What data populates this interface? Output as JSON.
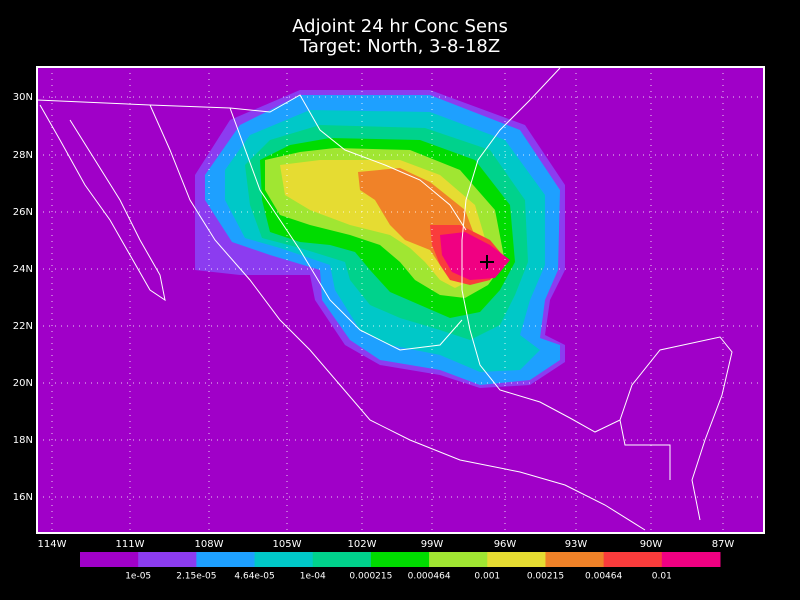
{
  "header": {
    "title": "Adjoint 24 hr Conc Sens",
    "subtitle": "Target: North, 3-8-18Z"
  },
  "map": {
    "lat_labels": [
      "30N",
      "28N",
      "26N",
      "24N",
      "22N",
      "20N",
      "18N",
      "16N"
    ],
    "lon_labels": [
      "114W",
      "111W",
      "108W",
      "105W",
      "102W",
      "99W",
      "96W",
      "93W",
      "90W",
      "87W"
    ]
  },
  "colorbar": {
    "colors": [
      "#a000c8",
      "#8c3cf0",
      "#1ea0ff",
      "#00c8c8",
      "#00d28c",
      "#00dc00",
      "#a0e632",
      "#e6dc32",
      "#f08228",
      "#fa3c3c",
      "#f00082"
    ],
    "labels": [
      "1e-05",
      "2.15e-05",
      "4.64e-05",
      "1e-04",
      "0.000215",
      "0.000464",
      "0.001",
      "0.00215",
      "0.00464",
      "0.01"
    ]
  }
}
